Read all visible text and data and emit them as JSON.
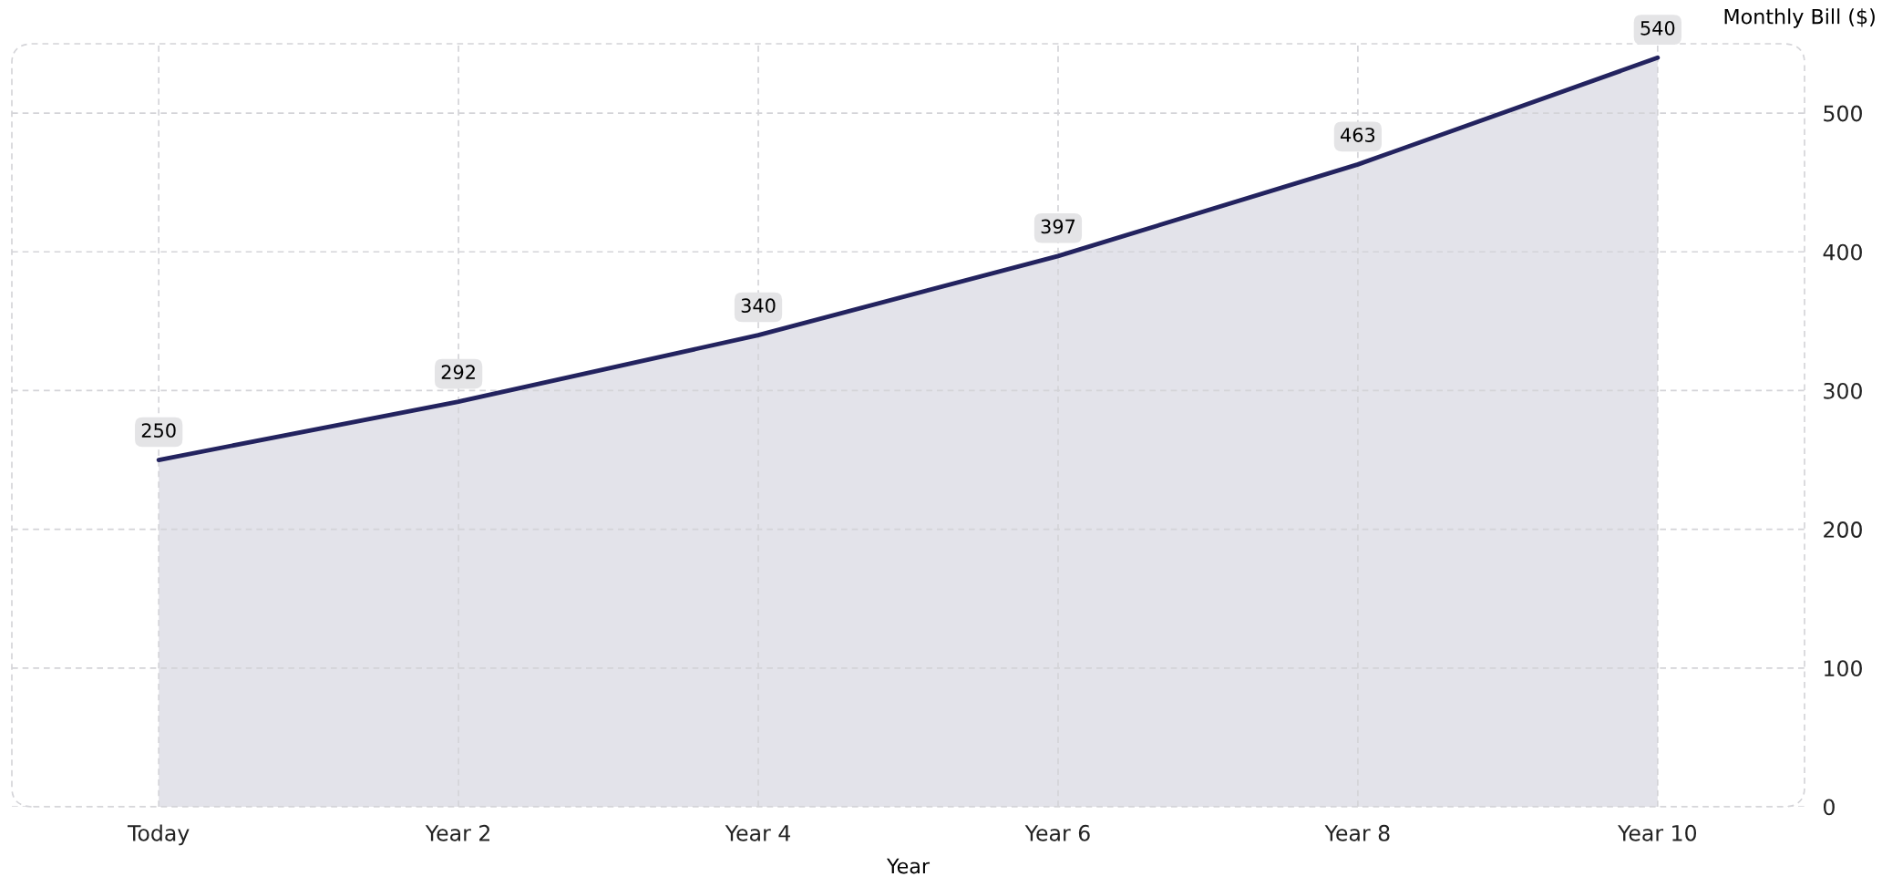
{
  "chart_data": {
    "type": "area",
    "xlabel": "Year",
    "ylabel": "Monthly Bill ($)",
    "categories": [
      "Today",
      "Year 2",
      "Year 4",
      "Year 6",
      "Year 8",
      "Year 10"
    ],
    "series": [
      {
        "color": "#23235f",
        "values": [
          250,
          292,
          340,
          397,
          463,
          540
        ]
      }
    ],
    "ylim": [
      0,
      550
    ],
    "yticks": [
      0,
      100,
      200,
      300,
      400,
      500
    ],
    "grid": true,
    "data_labels": true,
    "marker": "none",
    "line_style": "solid"
  }
}
